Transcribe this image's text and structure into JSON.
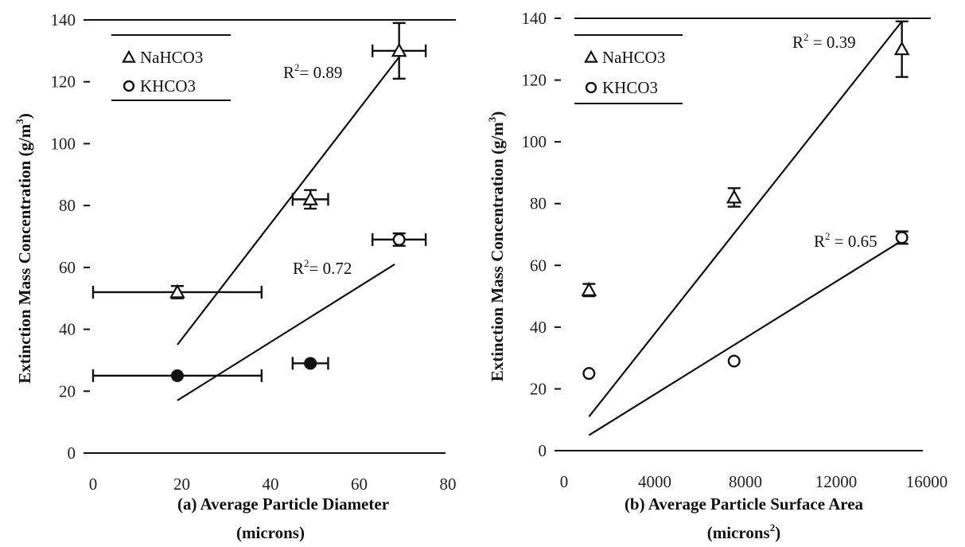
{
  "chart_data": [
    {
      "type": "scatter",
      "panel_label": "(a)",
      "xlabel": "Average Particle Diameter",
      "xlabel_units": "(microns)",
      "ylabel": "Extinction Mass Concentration (g/m",
      "ylabel_sup": "3",
      "ylabel_end": ")",
      "xlim": [
        0,
        80
      ],
      "ylim": [
        0,
        140
      ],
      "xticks": [
        "0",
        "20",
        "40",
        "60",
        "80"
      ],
      "yticks": [
        "0",
        "20",
        "40",
        "60",
        "80",
        "100",
        "120",
        "140"
      ],
      "legend_position": "top-left",
      "series": [
        {
          "name": "NaHCO3",
          "marker": "triangle",
          "points": [
            {
              "x": 19,
              "y": 52,
              "x_err": 19,
              "y_err": 2
            },
            {
              "x": 49,
              "y": 82,
              "x_err": 4,
              "y_err": 3
            },
            {
              "x": 69,
              "y": 130,
              "x_err": 6,
              "y_err": 9
            }
          ],
          "fit": {
            "x": [
              19,
              69
            ],
            "y": [
              35,
              128
            ]
          },
          "r2_label": "R",
          "r2_sup": "2",
          "r2_value": "=  0.89"
        },
        {
          "name": "KHCO3",
          "marker": "circle",
          "points": [
            {
              "x": 19,
              "y": 25,
              "x_err": 19,
              "y_err": 0
            },
            {
              "x": 49,
              "y": 29,
              "x_err": 4,
              "y_err": 0
            },
            {
              "x": 69,
              "y": 69,
              "x_err": 6,
              "y_err": 2
            }
          ],
          "fit": {
            "x": [
              19,
              68
            ],
            "y": [
              17,
              61
            ]
          },
          "r2_label": "R",
          "r2_sup": "2",
          "r2_value": "=  0.72"
        }
      ]
    },
    {
      "type": "scatter",
      "panel_label": "(b)",
      "xlabel": "Average Particle Surface Area",
      "xlabel_units": "(microns",
      "xlabel_units_sup": "2",
      "xlabel_units_end": ")",
      "ylabel": "Extinction Mass Concentration (g/m",
      "ylabel_sup": "3",
      "ylabel_end": ")",
      "xlim": [
        0,
        16000
      ],
      "ylim": [
        0,
        140
      ],
      "xticks": [
        "0",
        "4000",
        "8000",
        "12000",
        "16000"
      ],
      "yticks": [
        "0",
        "20",
        "40",
        "60",
        "80",
        "100",
        "120",
        "140"
      ],
      "legend_position": "top-left",
      "series": [
        {
          "name": "NaHCO3",
          "marker": "triangle",
          "points": [
            {
              "x": 1100,
              "y": 52,
              "x_err": 0,
              "y_err": 2
            },
            {
              "x": 7500,
              "y": 82,
              "x_err": 0,
              "y_err": 3
            },
            {
              "x": 14900,
              "y": 130,
              "x_err": 0,
              "y_err": 9
            }
          ],
          "fit": {
            "x": [
              1100,
              14900
            ],
            "y": [
              11,
              139
            ]
          },
          "r2_label": "R",
          "r2_sup": "2",
          "r2_value": " = 0.39"
        },
        {
          "name": "KHCO3",
          "marker": "circle",
          "points": [
            {
              "x": 1100,
              "y": 25,
              "x_err": 0,
              "y_err": 0
            },
            {
              "x": 7500,
              "y": 29,
              "x_err": 0,
              "y_err": 0
            },
            {
              "x": 14900,
              "y": 69,
              "x_err": 0,
              "y_err": 2
            }
          ],
          "fit": {
            "x": [
              1100,
              14900
            ],
            "y": [
              5,
              68
            ]
          },
          "r2_label": "R",
          "r2_sup": "2",
          "r2_value": " = 0.65"
        }
      ]
    }
  ]
}
